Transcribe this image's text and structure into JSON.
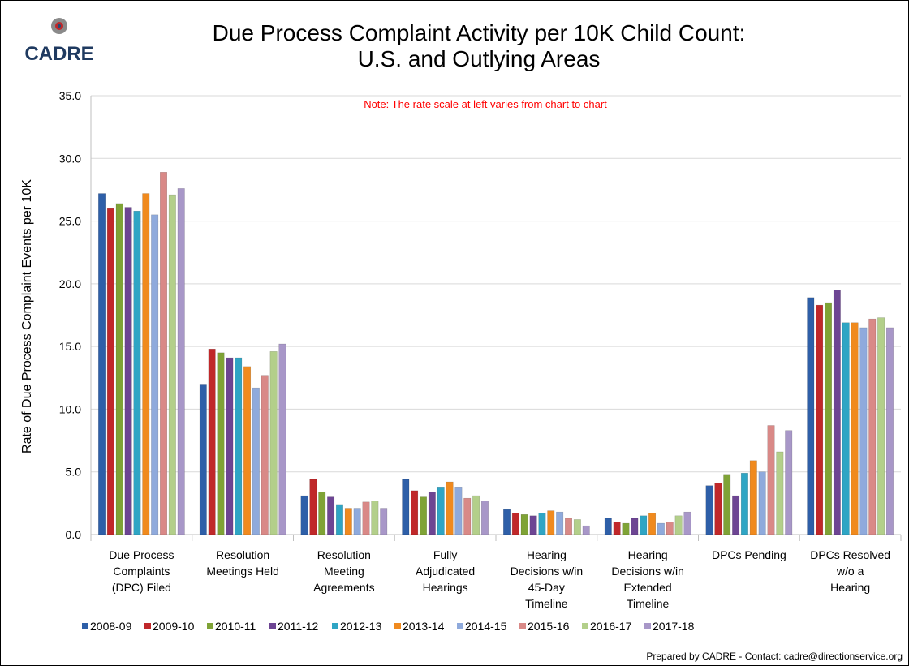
{
  "logo": "CADRE",
  "footer": "Prepared by CADRE - Contact: cadre@directionservice.org",
  "chart_data": {
    "type": "bar",
    "title": "Due Process Complaint Activity per 10K Child Count:\nU.S. and Outlying Areas",
    "annotation": "Note:  The rate scale at left varies from chart to chart",
    "y_label": "Rate of Due Process Complaint Events per 10K",
    "categories": [
      "Due Process\nComplaints\n(DPC) Filed",
      "Resolution\nMeetings Held",
      "Resolution\nMeeting\nAgreements",
      "Fully\nAdjudicated\nHearings",
      "Hearing\nDecisions w/in\n45-Day\nTimeline",
      "Hearing\nDecisions w/in\nExtended\nTimeline",
      "DPCs Pending",
      "DPCs Resolved\nw/o a\nHearing"
    ],
    "series": [
      {
        "name": "2008-09",
        "color": "#2e5fa8",
        "values": [
          27.2,
          12.0,
          3.1,
          4.4,
          2.0,
          1.3,
          3.9,
          18.9
        ]
      },
      {
        "name": "2009-10",
        "color": "#c0282a",
        "values": [
          26.0,
          14.8,
          4.4,
          3.5,
          1.7,
          1.0,
          4.1,
          18.3
        ]
      },
      {
        "name": "2010-11",
        "color": "#7fa336",
        "values": [
          26.4,
          14.5,
          3.4,
          3.0,
          1.6,
          0.9,
          4.8,
          18.5
        ]
      },
      {
        "name": "2011-12",
        "color": "#6d4593",
        "values": [
          26.1,
          14.1,
          3.0,
          3.4,
          1.5,
          1.3,
          3.1,
          19.5
        ]
      },
      {
        "name": "2012-13",
        "color": "#2fa5c4",
        "values": [
          25.8,
          14.1,
          2.4,
          3.8,
          1.7,
          1.5,
          4.9,
          16.9
        ]
      },
      {
        "name": "2013-14",
        "color": "#f08a1e",
        "values": [
          27.2,
          13.4,
          2.1,
          4.2,
          1.9,
          1.7,
          5.9,
          16.9
        ]
      },
      {
        "name": "2014-15",
        "color": "#8faadc",
        "values": [
          25.5,
          11.7,
          2.1,
          3.8,
          1.8,
          0.9,
          5.0,
          16.5
        ]
      },
      {
        "name": "2015-16",
        "color": "#d98987",
        "values": [
          28.9,
          12.7,
          2.6,
          2.9,
          1.3,
          1.0,
          8.7,
          17.2
        ]
      },
      {
        "name": "2016-17",
        "color": "#b3cf8a",
        "values": [
          27.1,
          14.6,
          2.7,
          3.1,
          1.2,
          1.5,
          6.6,
          17.3
        ]
      },
      {
        "name": "2017-18",
        "color": "#a897c8",
        "values": [
          27.6,
          15.2,
          2.1,
          2.7,
          0.7,
          1.8,
          8.3,
          16.5
        ]
      }
    ],
    "ylim": [
      0,
      35
    ],
    "yticks": [
      {
        "value": 0,
        "label": "0.0"
      },
      {
        "value": 5,
        "label": "5.0"
      },
      {
        "value": 10,
        "label": "10.0"
      },
      {
        "value": 15,
        "label": "15.0"
      },
      {
        "value": 20,
        "label": "20.0"
      },
      {
        "value": 25,
        "label": "25.0"
      },
      {
        "value": 30,
        "label": "30.0"
      },
      {
        "value": 35,
        "label": "35.0"
      }
    ],
    "grid": true,
    "legend": "bottom"
  }
}
